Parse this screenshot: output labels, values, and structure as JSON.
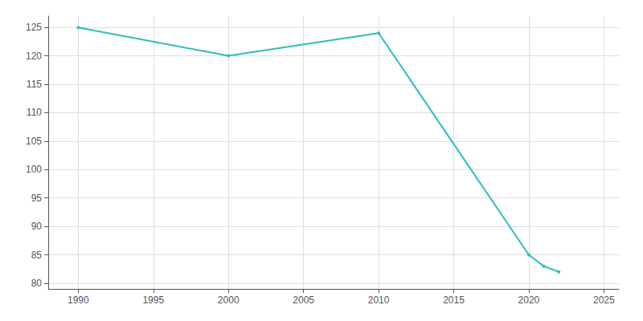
{
  "chart_data": {
    "type": "line",
    "x": [
      1990,
      2000,
      2010,
      2020,
      2021,
      2022
    ],
    "values": [
      125,
      120,
      124,
      85,
      83,
      82
    ],
    "color": "#2bbfbf",
    "marker": "point",
    "xlim": [
      1988,
      2026
    ],
    "ylim": [
      79,
      127
    ],
    "xticks": [
      1990,
      1995,
      2000,
      2005,
      2010,
      2015,
      2020,
      2025
    ],
    "yticks": [
      80,
      85,
      90,
      95,
      100,
      105,
      110,
      115,
      120,
      125
    ],
    "grid": true
  }
}
